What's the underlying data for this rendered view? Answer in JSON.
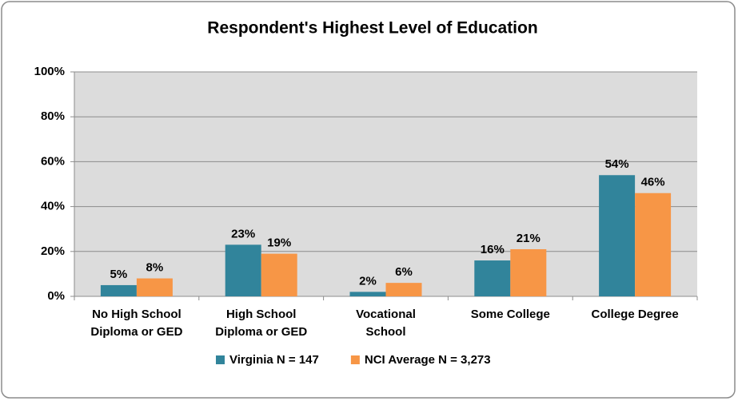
{
  "chart_data": {
    "type": "bar",
    "title": "Respondent's Highest Level of Education",
    "categories": [
      "No High School\nDiploma or GED",
      "High School\nDiploma or GED",
      "Vocational\nSchool",
      "Some College",
      "College Degree"
    ],
    "series": [
      {
        "name": "Virginia N = 147",
        "color": "#31849b",
        "values": [
          5,
          23,
          2,
          16,
          54
        ],
        "value_labels": [
          "5%",
          "23%",
          "2%",
          "16%",
          "54%"
        ]
      },
      {
        "name": "NCI Average N = 3,273",
        "color": "#f79646",
        "values": [
          8,
          19,
          6,
          21,
          46
        ],
        "value_labels": [
          "8%",
          "19%",
          "6%",
          "21%",
          "46%"
        ]
      }
    ],
    "ylim": [
      0,
      100
    ],
    "yticks": [
      {
        "value": 0,
        "label": "0%"
      },
      {
        "value": 20,
        "label": "20%"
      },
      {
        "value": 40,
        "label": "40%"
      },
      {
        "value": 60,
        "label": "60%"
      },
      {
        "value": 80,
        "label": "80%"
      },
      {
        "value": 100,
        "label": "100%"
      }
    ],
    "grid": true,
    "legend": "bottom"
  }
}
